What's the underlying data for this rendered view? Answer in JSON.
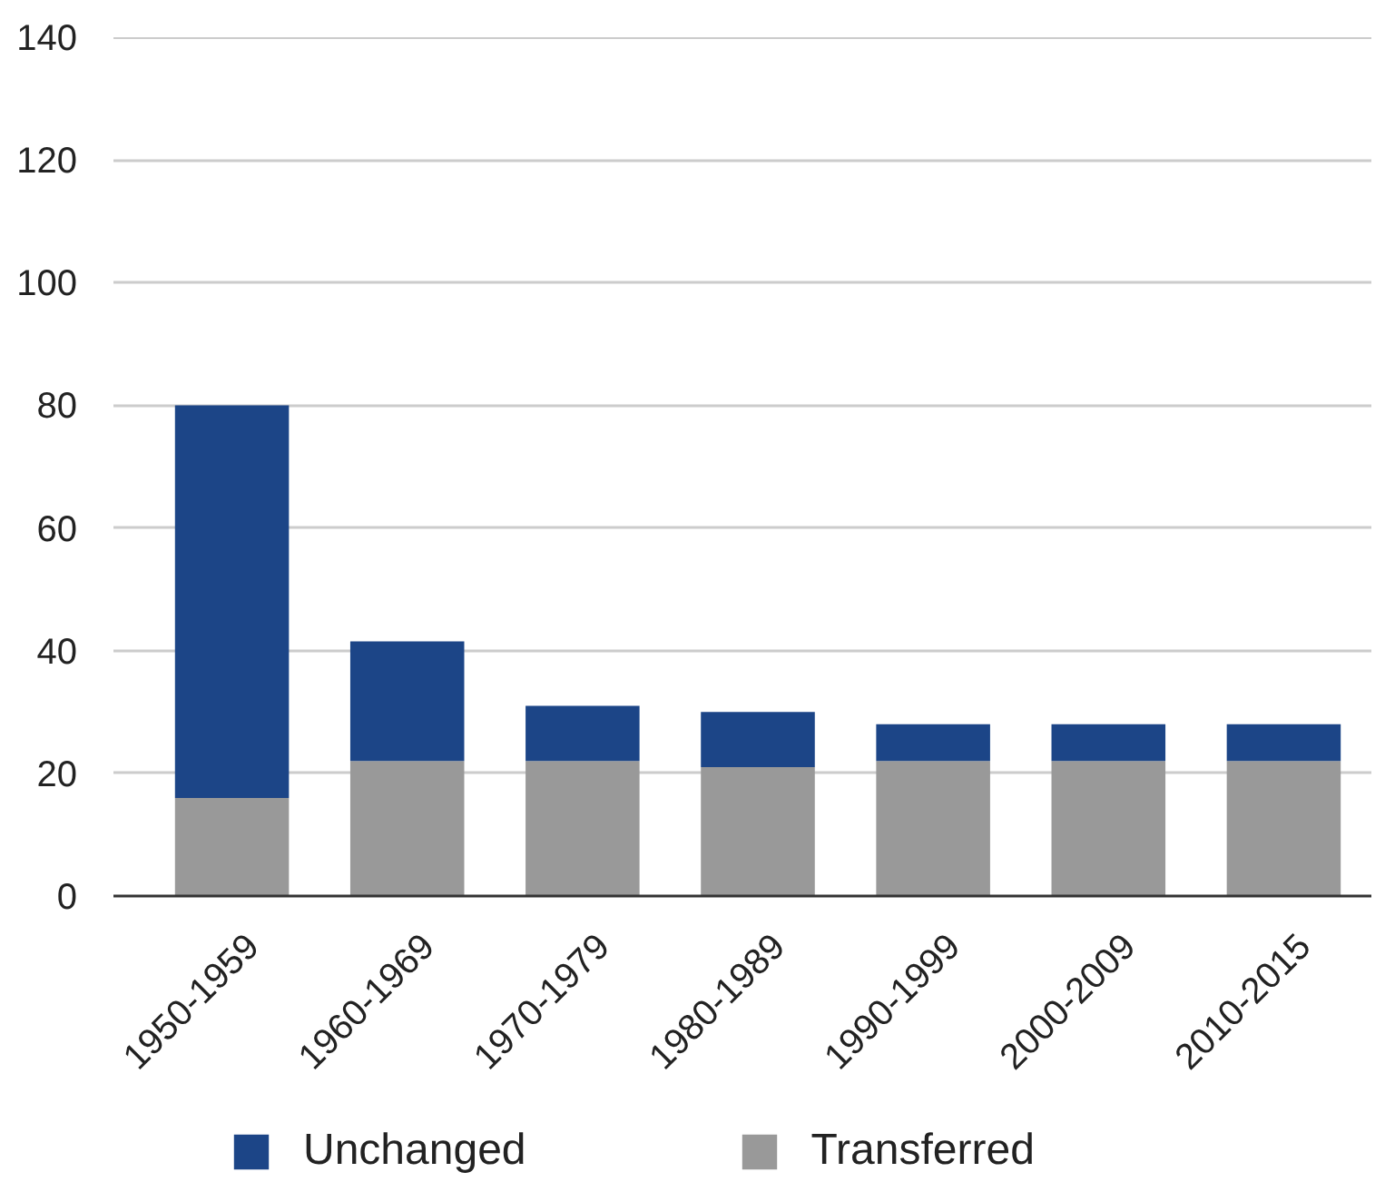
{
  "chart_data": {
    "type": "bar",
    "stacked": true,
    "categories": [
      "1950-1959",
      "1960-1969",
      "1970-1979",
      "1980-1989",
      "1990-1999",
      "2000-2009",
      "2010-2015"
    ],
    "series": [
      {
        "name": "Transferred",
        "color": "#999999",
        "values": [
          16,
          22,
          22,
          21,
          22,
          22,
          22
        ]
      },
      {
        "name": "Unchanged",
        "color": "#1c4587",
        "values": [
          64,
          19.5,
          9,
          9,
          6,
          6,
          6
        ]
      }
    ],
    "ylim": [
      0,
      140
    ],
    "yticks": [
      0,
      20,
      40,
      60,
      80,
      100,
      120,
      140
    ],
    "grid": "y",
    "legend": "bottom"
  }
}
